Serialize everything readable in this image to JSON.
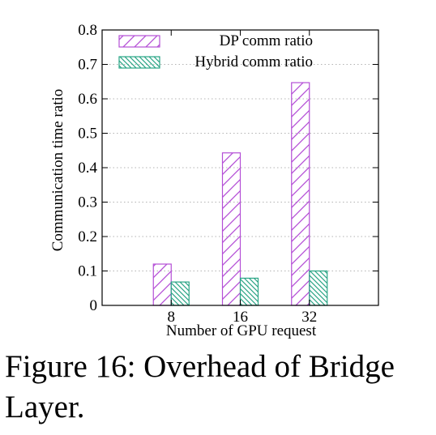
{
  "caption": "Figure 16: Overhead of Bridge Layer.",
  "chart_data": {
    "type": "bar",
    "categories": [
      "8",
      "16",
      "32"
    ],
    "series": [
      {
        "name": "DP comm ratio",
        "values": [
          0.12,
          0.443,
          0.647
        ],
        "color": "#b44fd6",
        "pattern": "hatch-forward"
      },
      {
        "name": "Hybrid comm ratio",
        "values": [
          0.068,
          0.079,
          0.1
        ],
        "color": "#2aa585",
        "pattern": "hatch-backward"
      }
    ],
    "xlabel": "Number of GPU request",
    "ylabel": "Communication time ratio",
    "ylim": [
      0,
      0.8
    ],
    "yticks": [
      "0",
      "0.1",
      "0.2",
      "0.3",
      "0.4",
      "0.5",
      "0.6",
      "0.7",
      "0.8"
    ],
    "grid": "horizontal dotted",
    "legend_position": "top-right"
  }
}
